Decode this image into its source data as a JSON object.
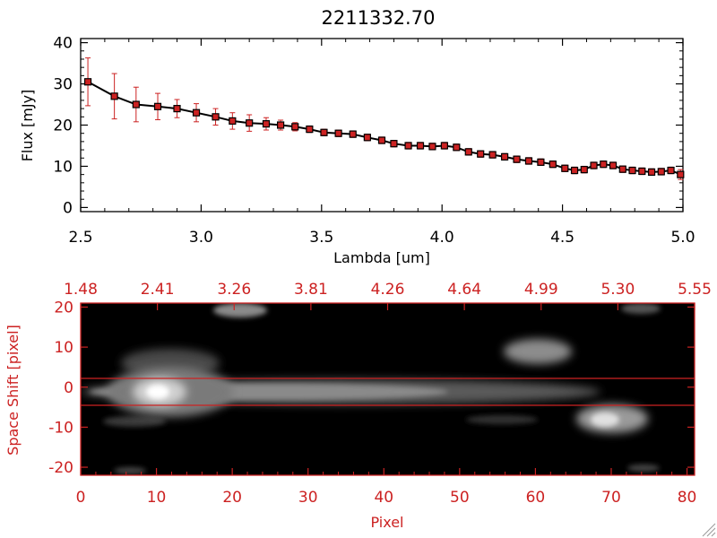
{
  "chart_data": [
    {
      "type": "line",
      "title": "2211332.70",
      "xlabel": "Lambda [um]",
      "ylabel": "Flux [mJy]",
      "xlim": [
        2.5,
        5.0
      ],
      "ylim": [
        -1,
        41
      ],
      "x_ticks": [
        "2.5",
        "3.0",
        "3.5",
        "4.0",
        "4.5",
        "5.0"
      ],
      "y_ticks": [
        "0",
        "10",
        "20",
        "30",
        "40"
      ],
      "series": [
        {
          "name": "flux",
          "x": [
            2.53,
            2.64,
            2.73,
            2.82,
            2.9,
            2.98,
            3.06,
            3.13,
            3.2,
            3.27,
            3.33,
            3.39,
            3.45,
            3.51,
            3.57,
            3.63,
            3.69,
            3.75,
            3.8,
            3.86,
            3.91,
            3.96,
            4.01,
            4.06,
            4.11,
            4.16,
            4.21,
            4.26,
            4.31,
            4.36,
            4.41,
            4.46,
            4.51,
            4.55,
            4.59,
            4.63,
            4.67,
            4.71,
            4.75,
            4.79,
            4.83,
            4.87,
            4.91,
            4.95,
            4.99
          ],
          "y": [
            30.5,
            27.0,
            25.0,
            24.5,
            24.0,
            23.0,
            22.0,
            21.0,
            20.5,
            20.3,
            20.0,
            19.6,
            19.0,
            18.2,
            18.0,
            17.8,
            17.0,
            16.3,
            15.5,
            15.0,
            15.0,
            14.8,
            15.0,
            14.6,
            13.5,
            13.0,
            12.8,
            12.3,
            11.7,
            11.3,
            11.0,
            10.5,
            9.5,
            9.0,
            9.2,
            10.2,
            10.5,
            10.2,
            9.3,
            9.0,
            8.8,
            8.6,
            8.7,
            9.0,
            8.0
          ],
          "errors": [
            5.8,
            5.5,
            4.2,
            3.2,
            2.2,
            2.2,
            2.0,
            2.0,
            2.0,
            1.5,
            1.2,
            1.0,
            0.8,
            0.8,
            0.8,
            0.8,
            0.8,
            0.8,
            0.8,
            0.8,
            0.8,
            0.8,
            0.8,
            0.8,
            0.8,
            0.8,
            0.8,
            0.8,
            0.8,
            0.8,
            0.8,
            0.8,
            0.8,
            0.8,
            0.8,
            0.8,
            0.8,
            0.8,
            0.8,
            0.8,
            0.8,
            0.8,
            0.8,
            0.8,
            1.2
          ]
        }
      ],
      "colors": {
        "line": "#000000",
        "marker": "#cc2222",
        "errorbar": "#cc2222"
      }
    },
    {
      "type": "heatmap",
      "xlabel": "Pixel",
      "ylabel": "Space Shift [pixel]",
      "xlim": [
        0,
        81
      ],
      "ylim": [
        -22,
        21
      ],
      "x_ticks": [
        "0",
        "10",
        "20",
        "30",
        "40",
        "50",
        "60",
        "70",
        "80"
      ],
      "y_ticks": [
        "-20",
        "-10",
        "0",
        "10",
        "20"
      ],
      "top_axis_ticks": [
        "1.48",
        "2.41",
        "3.26",
        "3.81",
        "4.26",
        "4.64",
        "4.99",
        "5.30",
        "5.55"
      ],
      "extraction_lines": [
        3,
        -3
      ],
      "sources": [
        {
          "name": "main-trace-core",
          "x": 10.5,
          "y": 0,
          "intensity": 0.95
        },
        {
          "name": "trace-tail",
          "x_range": [
            10,
            62
          ],
          "y": 0,
          "intensity": 0.55
        },
        {
          "name": "upper-right-blob",
          "x": 61,
          "y": 9,
          "intensity": 0.45
        },
        {
          "name": "lower-right-blob",
          "x": 69,
          "y": -7,
          "intensity": 0.7
        },
        {
          "name": "top-left-blob",
          "x": 20,
          "y": 20,
          "intensity": 0.3
        },
        {
          "name": "top-right-blob",
          "x": 73,
          "y": 20,
          "intensity": 0.2
        }
      ],
      "colors": {
        "axis": "#cc2222",
        "background": "#000000",
        "extraction_line": "#cc2222"
      }
    }
  ]
}
